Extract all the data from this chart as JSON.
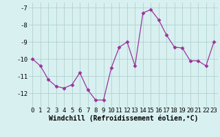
{
  "x": [
    0,
    1,
    2,
    3,
    4,
    5,
    6,
    7,
    8,
    9,
    10,
    11,
    12,
    13,
    14,
    15,
    16,
    17,
    18,
    19,
    20,
    21,
    22,
    23
  ],
  "y": [
    -10.0,
    -10.4,
    -11.2,
    -11.6,
    -11.7,
    -11.5,
    -10.8,
    -11.8,
    -12.4,
    -12.4,
    -10.5,
    -9.3,
    -9.0,
    -10.4,
    -7.3,
    -7.1,
    -7.7,
    -8.6,
    -9.3,
    -9.35,
    -10.1,
    -10.1,
    -10.4,
    -9.0
  ],
  "line_color": "#993399",
  "marker": "D",
  "marker_size": 2.5,
  "bg_color": "#d8f0f0",
  "grid_color": "#b0d0d0",
  "xlabel": "Windchill (Refroidissement éolien,°C)",
  "xlabel_fontsize": 7,
  "tick_fontsize": 6.5,
  "ylim": [
    -12.8,
    -6.7
  ],
  "yticks": [
    -12,
    -11,
    -10,
    -9,
    -8,
    -7
  ],
  "xticks": [
    0,
    1,
    2,
    3,
    4,
    5,
    6,
    7,
    8,
    9,
    10,
    11,
    12,
    13,
    14,
    15,
    16,
    17,
    18,
    19,
    20,
    21,
    22,
    23
  ],
  "line_width": 0.9
}
